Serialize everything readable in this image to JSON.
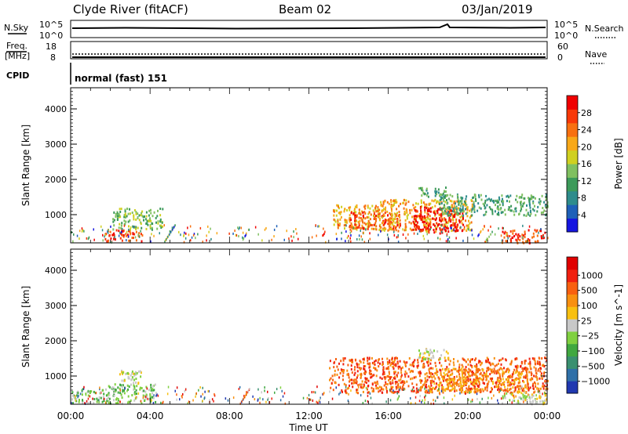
{
  "header": {
    "station": "Clyde River (fitACF)",
    "beam": "Beam 02",
    "date": "03/Jan/2019"
  },
  "strip_nsky": {
    "label": "N.Sky",
    "right_label": "N.Search",
    "left_ticks": [
      "10^5",
      "10^0"
    ],
    "right_ticks": [
      "10^5",
      "10^0"
    ]
  },
  "strip_freq": {
    "label_top": "Freq.",
    "label_unit": "[MHz]",
    "right_label": "Nave",
    "left_ticks": [
      "18",
      "8"
    ],
    "right_ticks": [
      "60",
      "0"
    ]
  },
  "strip_cpid": {
    "label": "CPID",
    "program": "normal (fast) 151"
  },
  "chart_data": [
    {
      "type": "heatmap",
      "name": "power",
      "ylabel": "Slant Range [km]",
      "ylim": [
        200,
        4600
      ],
      "y_ticks": [
        {
          "value": 4000,
          "label": "4000"
        },
        {
          "value": 3000,
          "label": "3000"
        },
        {
          "value": 2000,
          "label": "2000"
        },
        {
          "value": 1000,
          "label": "1000"
        }
      ],
      "colorbar": {
        "label": "Power [dB]",
        "range": [
          0,
          32
        ],
        "ticks": [
          "28",
          "24",
          "20",
          "16",
          "12",
          "8",
          "4"
        ],
        "tick_values": [
          28,
          24,
          20,
          16,
          12,
          8,
          4
        ],
        "colors": [
          "#1515e0",
          "#1e60b8",
          "#2e8c8c",
          "#3c9a5a",
          "#80c060",
          "#d0d020",
          "#f8a818",
          "#f87010",
          "#f83808",
          "#f00000"
        ]
      },
      "regions": [
        {
          "t": [
            1.7,
            3.6
          ],
          "r": [
            250,
            600
          ],
          "level": 8
        },
        {
          "t": [
            2.1,
            4.6
          ],
          "r": [
            600,
            1200
          ],
          "level": 4
        },
        {
          "t": [
            13.2,
            15.5
          ],
          "r": [
            600,
            1300
          ],
          "level": 6
        },
        {
          "t": [
            14.0,
            16.6
          ],
          "r": [
            600,
            1100
          ],
          "level": 8
        },
        {
          "t": [
            15.5,
            20.2
          ],
          "r": [
            550,
            1450
          ],
          "level": 6
        },
        {
          "t": [
            17.2,
            19.8
          ],
          "r": [
            500,
            1250
          ],
          "level": 9
        },
        {
          "t": [
            18.5,
            24.0
          ],
          "r": [
            1000,
            1600
          ],
          "level": 3
        },
        {
          "t": [
            17.5,
            19.0
          ],
          "r": [
            1500,
            1800
          ],
          "level": 3
        },
        {
          "t": [
            21.7,
            24.0
          ],
          "r": [
            220,
            600
          ],
          "level": 8
        }
      ]
    },
    {
      "type": "heatmap",
      "name": "velocity",
      "ylabel": "Slant Range [km]",
      "ylim": [
        200,
        4600
      ],
      "y_ticks": [
        {
          "value": 4000,
          "label": "4000"
        },
        {
          "value": 3000,
          "label": "3000"
        },
        {
          "value": 2000,
          "label": "2000"
        },
        {
          "value": 1000,
          "label": "1000"
        }
      ],
      "colorbar": {
        "label": "Velocity [m s^-1]",
        "ticks": [
          "1000",
          "500",
          "100",
          "25",
          "−25",
          "−100",
          "−500",
          "−1000"
        ],
        "colors": [
          "#2038b0",
          "#3070a8",
          "#3a9070",
          "#40a840",
          "#80d040",
          "#c8c8c8",
          "#f8c010",
          "#f89010",
          "#f86010",
          "#f02010",
          "#e00000"
        ]
      },
      "regions": [
        {
          "t": [
            0.0,
            1.5
          ],
          "r": [
            250,
            600
          ],
          "level": 4
        },
        {
          "t": [
            1.5,
            4.3
          ],
          "r": [
            250,
            800
          ],
          "level": 4
        },
        {
          "t": [
            2.4,
            3.6
          ],
          "r": [
            800,
            1200
          ],
          "level": 5
        },
        {
          "t": [
            13.0,
            24.0
          ],
          "r": [
            550,
            1550
          ],
          "level": 8
        },
        {
          "t": [
            18.0,
            23.0
          ],
          "r": [
            550,
            1250
          ],
          "level": 7
        },
        {
          "t": [
            17.5,
            19.0
          ],
          "r": [
            1500,
            1800
          ],
          "level": 5
        },
        {
          "t": [
            21.7,
            24.0
          ],
          "r": [
            220,
            550
          ],
          "level": 5
        }
      ]
    }
  ],
  "x_axis": {
    "label": "Time UT",
    "range_hours": [
      0,
      24
    ],
    "ticks": [
      {
        "value": 0,
        "label": "00:00"
      },
      {
        "value": 4,
        "label": "04:00"
      },
      {
        "value": 8,
        "label": "08:00"
      },
      {
        "value": 12,
        "label": "12:00"
      },
      {
        "value": 16,
        "label": "16:00"
      },
      {
        "value": 20,
        "label": "20:00"
      },
      {
        "value": 24,
        "label": "00:00"
      }
    ]
  }
}
